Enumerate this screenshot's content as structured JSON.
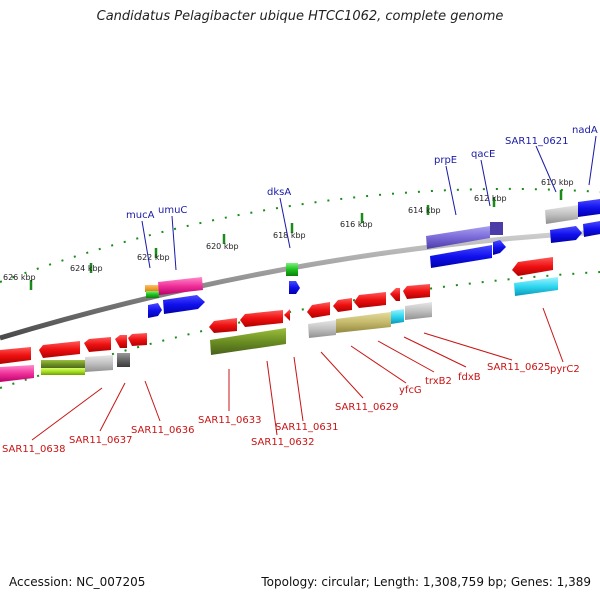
{
  "title": "Candidatus Pelagibacter ubique HTCC1062, complete genome",
  "footer": {
    "accession": "Accession: NC_007205",
    "summary": "Topology: circular; Length: 1,308,759 bp; Genes: 1,389"
  },
  "kbp_ticks": [
    "626 kbp",
    "624 kbp",
    "622 kbp",
    "620 kbp",
    "618 kbp",
    "616 kbp",
    "614 kbp",
    "612 kbp",
    "610 kbp"
  ],
  "forward_labels": [
    "mucA",
    "umuC",
    "dksA",
    "prpE",
    "qacE",
    "SAR11_0621",
    "nadA"
  ],
  "reverse_labels": [
    "SAR11_0638",
    "SAR11_0637",
    "SAR11_0636",
    "SAR11_0633",
    "SAR11_0632",
    "SAR11_0631",
    "SAR11_0629",
    "yfcG",
    "trxB2",
    "fdxB",
    "SAR11_0625",
    "pyrC2"
  ],
  "colors": {
    "backbone": "#8c8c8c",
    "cds": "#e81010",
    "gene_forward": "#1414e6",
    "tick_green": "#1a8c1a",
    "label_blue": "#1a1aa6",
    "label_red": "#c81414"
  }
}
